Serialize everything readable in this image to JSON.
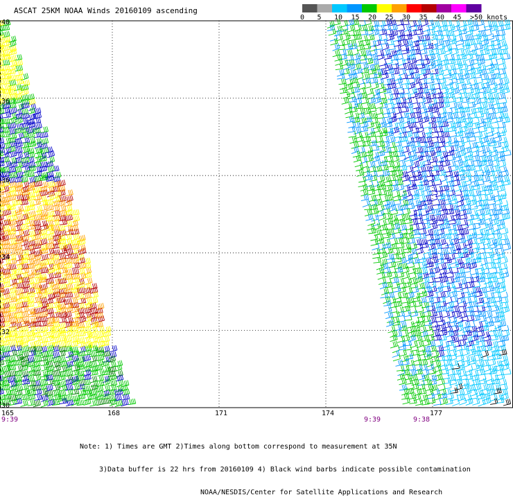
{
  "title": "ASCAT 25KM NOAA Winds 20160109 ascending",
  "legend": {
    "labels": [
      "0",
      "5",
      "10",
      "15",
      "20",
      "25",
      "30",
      "35",
      "40",
      "45",
      ">50 knots"
    ],
    "colors": [
      "#555555",
      "#aaaaaa",
      "#00c8ff",
      "#0096ff",
      "#00c800",
      "#ffff00",
      "#ffa000",
      "#ff0000",
      "#b40000",
      "#a000a0",
      "#ff00ff",
      "#6000a0"
    ]
  },
  "latitudes": [
    "40",
    "36",
    "36",
    "34",
    "32",
    "30"
  ],
  "longitudes": [
    "165",
    "168",
    "171",
    "174",
    "177"
  ],
  "times": [
    "9:39",
    "9:39",
    "9:38"
  ],
  "notes": [
    "Note: 1) Times are GMT 2)Times along bottom correspond to measurement at 35N",
    "3)Data buffer is 22 hrs from 20160109 4) Black wind barbs indicate possible contamination",
    "NOAA/NESDIS/Center for Satellite Applications and Research"
  ],
  "swaths": [
    {
      "name": "west-swath",
      "segments": [
        {
          "lat": [
            31,
            40
          ],
          "color": [
            "#ffff00",
            "#00c800",
            "#0000c8"
          ],
          "speed": [
            18,
            32
          ]
        },
        {
          "lat": [
            33,
            36
          ],
          "color": [
            "#ffa000",
            "#b40000",
            "#ffff00"
          ],
          "speed": [
            25,
            42
          ]
        },
        {
          "lat": [
            30,
            33
          ],
          "color": [
            "#00c800",
            "#0000c8",
            "#ffff00"
          ],
          "speed": [
            15,
            30
          ]
        }
      ]
    },
    {
      "name": "east-swath",
      "segments": [
        {
          "lat": [
            30,
            40
          ],
          "color": [
            "#00c8ff",
            "#0000c8",
            "#00c800",
            "#0096ff"
          ],
          "speed": [
            12,
            30
          ]
        }
      ]
    }
  ]
}
